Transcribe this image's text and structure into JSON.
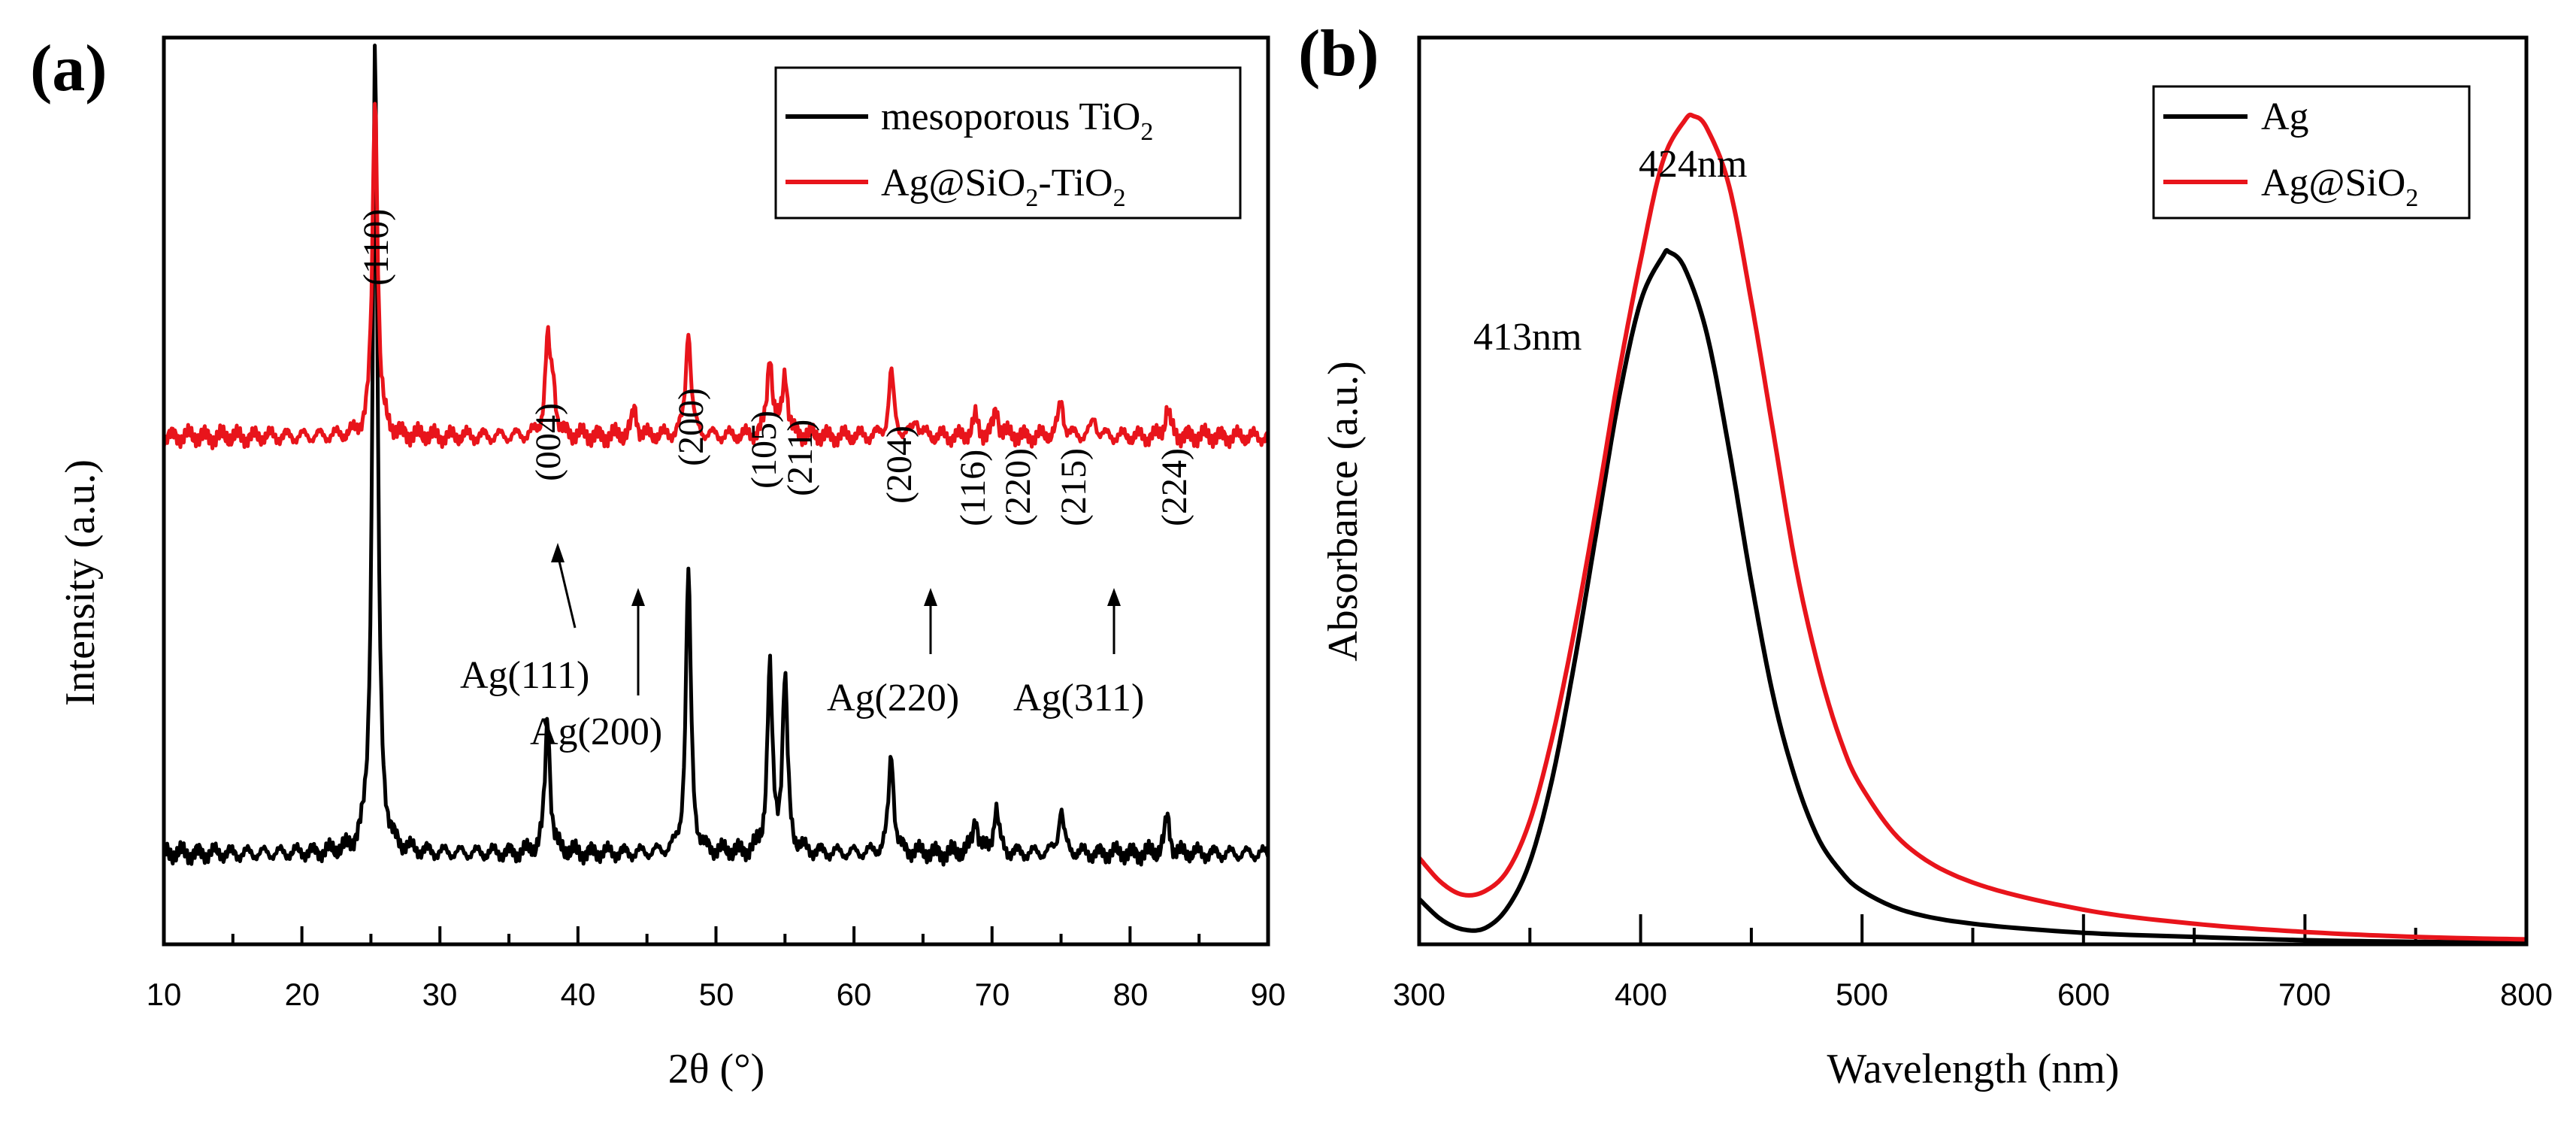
{
  "chart_data": [
    {
      "panel_label": "(a)",
      "type": "line",
      "xlabel": "2θ (°)",
      "ylabel": "Intensity (a.u.)",
      "xlim": [
        10,
        90
      ],
      "xticks": [
        "10",
        "20",
        "30",
        "40",
        "50",
        "60",
        "70",
        "80",
        "90"
      ],
      "ylim": [
        0,
        100
      ],
      "legend": {
        "position": "top-right"
      },
      "series": [
        {
          "name": "mesoporous TiO2",
          "legend_text": "mesoporous TiO",
          "legend_sub": "2",
          "legend_tail": "",
          "color": "#000000",
          "baseline": 10,
          "peaks": [
            [
              25.3,
              89
            ],
            [
              37.8,
              15
            ],
            [
              48.0,
              31
            ],
            [
              53.9,
              20
            ],
            [
              55.0,
              19
            ],
            [
              62.7,
              11
            ],
            [
              68.8,
              4
            ],
            [
              70.3,
              5
            ],
            [
              75.0,
              5
            ],
            [
              82.7,
              4
            ]
          ]
        },
        {
          "name": "Ag@SiO2-TiO2",
          "legend_text": "Ag@SiO",
          "legend_sub": "2",
          "legend_tail": "-TiO",
          "legend_sub2": "2",
          "color": "#e8141b",
          "baseline": 56,
          "peaks": [
            [
              25.3,
              38
            ],
            [
              37.8,
              10
            ],
            [
              38.2,
              5
            ],
            [
              44.1,
              3
            ],
            [
              48.0,
              12
            ],
            [
              53.9,
              9
            ],
            [
              55.0,
              7
            ],
            [
              62.7,
              7
            ],
            [
              64.5,
              2
            ],
            [
              68.8,
              2
            ],
            [
              70.3,
              3
            ],
            [
              75.0,
              4
            ],
            [
              77.4,
              2
            ],
            [
              82.7,
              3
            ]
          ]
        }
      ],
      "reflection_labels": [
        "(110)",
        "(004)",
        "(200)",
        "(105)",
        "(211)",
        "(204)",
        "(116)",
        "(220)",
        "(215)",
        "(224)"
      ],
      "reflection_positions": [
        25.3,
        37.8,
        48.0,
        53.9,
        55.0,
        62.7,
        68.8,
        70.3,
        75.0,
        82.7
      ],
      "ag_annotations": [
        {
          "label": "Ag(111)",
          "x": 38.2
        },
        {
          "label": "Ag(200)",
          "x": 44.2
        },
        {
          "label": "Ag(220)",
          "x": 64.5
        },
        {
          "label": "Ag(311)",
          "x": 77.4
        }
      ]
    },
    {
      "panel_label": "(b)",
      "type": "line",
      "xlabel": "Wavelength (nm)",
      "ylabel": "Absorbance (a.u.)",
      "xlim": [
        300,
        800
      ],
      "xticks": [
        "300",
        "400",
        "500",
        "600",
        "700",
        "800"
      ],
      "ylim": [
        0,
        1.0
      ],
      "legend": {
        "position": "top-right"
      },
      "series": [
        {
          "name": "Ag",
          "legend_text": "Ag",
          "legend_sub": "",
          "color": "#000000",
          "peak_wavelength": 413,
          "peak_label": "413nm",
          "points": [
            [
              300,
              0.055
            ],
            [
              310,
              0.03
            ],
            [
              320,
              0.018
            ],
            [
              330,
              0.02
            ],
            [
              340,
              0.045
            ],
            [
              350,
              0.1
            ],
            [
              360,
              0.2
            ],
            [
              370,
              0.34
            ],
            [
              380,
              0.5
            ],
            [
              390,
              0.66
            ],
            [
              400,
              0.78
            ],
            [
              410,
              0.835
            ],
            [
              413,
              0.84
            ],
            [
              420,
              0.82
            ],
            [
              430,
              0.74
            ],
            [
              440,
              0.6
            ],
            [
              450,
              0.44
            ],
            [
              460,
              0.3
            ],
            [
              470,
              0.2
            ],
            [
              480,
              0.13
            ],
            [
              490,
              0.09
            ],
            [
              500,
              0.065
            ],
            [
              520,
              0.04
            ],
            [
              550,
              0.025
            ],
            [
              600,
              0.014
            ],
            [
              650,
              0.009
            ],
            [
              700,
              0.005
            ],
            [
              750,
              0.003
            ],
            [
              800,
              0.002
            ]
          ]
        },
        {
          "name": "Ag@SiO2",
          "legend_text": "Ag@SiO",
          "legend_sub": "2",
          "color": "#e8141b",
          "peak_wavelength": 424,
          "peak_label": "424nm",
          "points": [
            [
              300,
              0.105
            ],
            [
              310,
              0.075
            ],
            [
              320,
              0.06
            ],
            [
              330,
              0.065
            ],
            [
              340,
              0.09
            ],
            [
              350,
              0.15
            ],
            [
              360,
              0.25
            ],
            [
              370,
              0.38
            ],
            [
              380,
              0.53
            ],
            [
              390,
              0.69
            ],
            [
              400,
              0.83
            ],
            [
              410,
              0.95
            ],
            [
              420,
              1.0
            ],
            [
              424,
              1.005
            ],
            [
              430,
              0.99
            ],
            [
              440,
              0.92
            ],
            [
              450,
              0.78
            ],
            [
              460,
              0.62
            ],
            [
              470,
              0.46
            ],
            [
              480,
              0.34
            ],
            [
              490,
              0.25
            ],
            [
              500,
              0.19
            ],
            [
              520,
              0.12
            ],
            [
              550,
              0.075
            ],
            [
              600,
              0.042
            ],
            [
              650,
              0.025
            ],
            [
              700,
              0.015
            ],
            [
              750,
              0.009
            ],
            [
              800,
              0.006
            ]
          ]
        }
      ]
    }
  ]
}
